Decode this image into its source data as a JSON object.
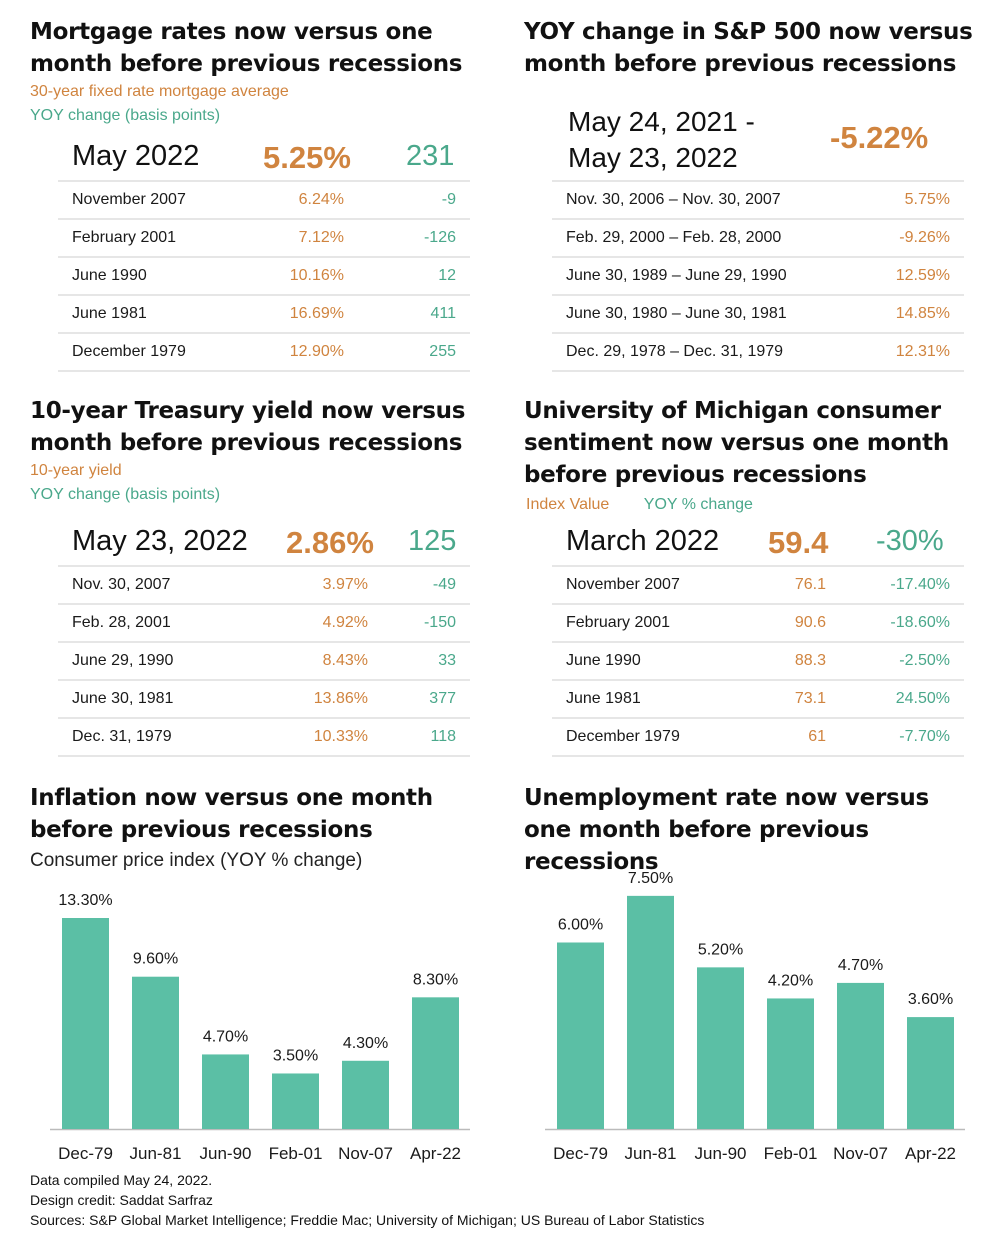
{
  "colors": {
    "orange": "#d0843f",
    "teal": "#4aa88b",
    "bar": "#5bbfa5"
  },
  "mortgage": {
    "title_line1": "Mortgage rates now versus one",
    "title_line2": "month before previous recessions",
    "legend_orange": "30-year fixed rate mortgage average",
    "legend_teal": "YOY change (basis points)",
    "current": {
      "label": "May 2022",
      "value": "5.25%",
      "change": "231"
    },
    "rows": [
      {
        "label": "November 2007",
        "value": "6.24%",
        "change": "-9"
      },
      {
        "label": "February 2001",
        "value": "7.12%",
        "change": "-126"
      },
      {
        "label": "June 1990",
        "value": "10.16%",
        "change": "12"
      },
      {
        "label": "June 1981",
        "value": "16.69%",
        "change": "411"
      },
      {
        "label": "December 1979",
        "value": "12.90%",
        "change": "255"
      }
    ]
  },
  "sp500": {
    "title_line1": "YOY change in S&P 500 now versus",
    "title_line2": "month before previous recessions",
    "current": {
      "label_line1": "May 24, 2021 -",
      "label_line2": "May 23, 2022",
      "value": "-5.22%"
    },
    "rows": [
      {
        "label": "Nov. 30, 2006 – Nov. 30, 2007",
        "value": "5.75%"
      },
      {
        "label": "Feb. 29, 2000 – Feb. 28, 2000",
        "value": "-9.26%"
      },
      {
        "label": "June 30, 1989 – June 29, 1990",
        "value": "12.59%"
      },
      {
        "label": "June 30, 1980 – June 30, 1981",
        "value": "14.85%"
      },
      {
        "label": "Dec. 29, 1978 – Dec. 31, 1979",
        "value": "12.31%"
      }
    ]
  },
  "treasury": {
    "title_line1": "10-year Treasury yield now versus",
    "title_line2": "month before previous recessions",
    "legend_orange": "10-year yield",
    "legend_teal": "YOY change (basis points)",
    "current": {
      "label": "May 23, 2022",
      "value": "2.86%",
      "change": "125"
    },
    "rows": [
      {
        "label": "Nov. 30, 2007",
        "value": "3.97%",
        "change": "-49"
      },
      {
        "label": "Feb. 28, 2001",
        "value": "4.92%",
        "change": "-150"
      },
      {
        "label": "June 29, 1990",
        "value": "8.43%",
        "change": "33"
      },
      {
        "label": "June 30, 1981",
        "value": "13.86%",
        "change": "377"
      },
      {
        "label": "Dec. 31, 1979",
        "value": "10.33%",
        "change": "118"
      }
    ]
  },
  "michigan": {
    "title_line1": "University of Michigan consumer",
    "title_line2": "sentiment now versus one month",
    "title_line3": "before previous recessions",
    "legend_orange": "Index Value",
    "legend_teal": "YOY % change",
    "current": {
      "label": "March 2022",
      "value": "59.4",
      "change": "-30%"
    },
    "rows": [
      {
        "label": "November 2007",
        "value": "76.1",
        "change": "-17.40%"
      },
      {
        "label": "February 2001",
        "value": "90.6",
        "change": "-18.60%"
      },
      {
        "label": "June 1990",
        "value": "88.3",
        "change": "-2.50%"
      },
      {
        "label": "June 1981",
        "value": "73.1",
        "change": "24.50%"
      },
      {
        "label": "December 1979",
        "value": "61",
        "change": "-7.70%"
      }
    ]
  },
  "inflation": {
    "title_line1": "Inflation now versus one month",
    "title_line2": "before previous recessions",
    "subtitle": "Consumer price index (YOY % change)"
  },
  "unemployment": {
    "title_line1": "Unemployment rate now versus",
    "title_line2": "one month before previous",
    "title_line3": "recessions"
  },
  "footer": {
    "line1": "Data compiled May 24, 2022.",
    "line2": "Design credit: Saddat Sarfraz",
    "line3": "Sources: S&P Global Market Intelligence; Freddie Mac; University of Michigan; US Bureau of Labor Statistics"
  },
  "chart_data": [
    {
      "type": "bar",
      "title": "Inflation now versus one month before previous recessions",
      "subtitle": "Consumer price index (YOY % change)",
      "categories": [
        "Dec-79",
        "Jun-81",
        "Jun-90",
        "Feb-01",
        "Nov-07",
        "Apr-22"
      ],
      "values": [
        13.3,
        9.6,
        4.7,
        3.5,
        4.3,
        8.3
      ],
      "labels": [
        "13.30%",
        "9.60%",
        "4.70%",
        "3.50%",
        "4.30%",
        "8.30%"
      ],
      "xlabel": "",
      "ylabel": "",
      "ylim": [
        0,
        13.3
      ],
      "grid": false
    },
    {
      "type": "bar",
      "title": "Unemployment rate now versus one month before previous recessions",
      "categories": [
        "Dec-79",
        "Jun-81",
        "Jun-90",
        "Feb-01",
        "Nov-07",
        "Apr-22"
      ],
      "values": [
        6.0,
        7.5,
        5.2,
        4.2,
        4.7,
        3.6
      ],
      "labels": [
        "6.00%",
        "7.50%",
        "5.20%",
        "4.20%",
        "4.70%",
        "3.60%"
      ],
      "xlabel": "",
      "ylabel": "",
      "ylim": [
        0,
        8.3
      ],
      "grid": false
    }
  ]
}
